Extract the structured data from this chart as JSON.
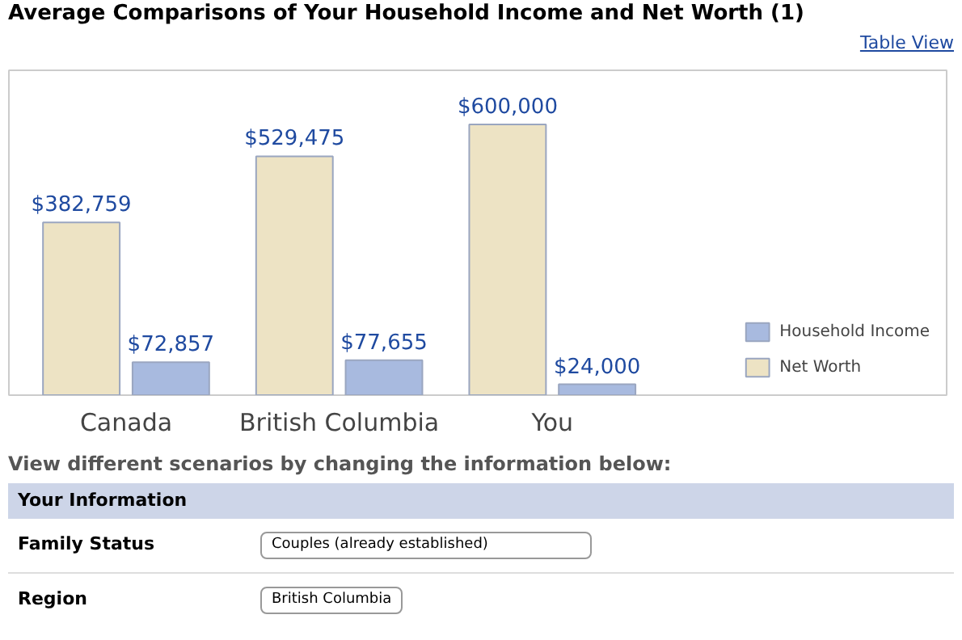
{
  "chart_data": {
    "type": "bar",
    "title": "Average Comparisons of Your Household Income and Net Worth (1)",
    "categories": [
      "Canada",
      "British Columbia",
      "You"
    ],
    "series": [
      {
        "name": "Net Worth",
        "color": "#ede3c4",
        "values": [
          382759,
          529475,
          600000
        ],
        "value_labels": [
          "$382,759",
          "$529,475",
          "$600,000"
        ]
      },
      {
        "name": "Household Income",
        "color": "#a8badf",
        "values": [
          72857,
          77655,
          24000
        ],
        "value_labels": [
          "$72,857",
          "$77,655",
          "$24,000"
        ]
      }
    ],
    "legend": "bottom right",
    "grid": false,
    "annotations": [
      "Table View",
      "View different scenarios by changing the information below:",
      "Your Information",
      "Family Status",
      "Couples (already established)",
      "Region",
      "British Columbia"
    ]
  }
}
